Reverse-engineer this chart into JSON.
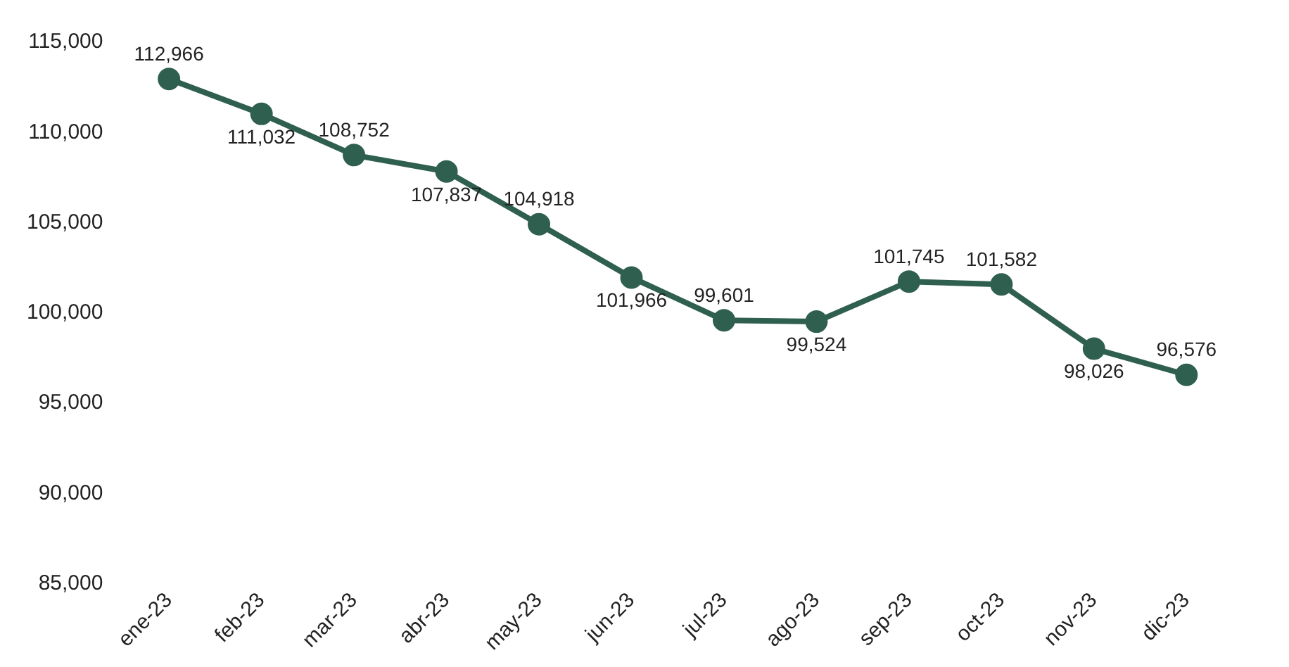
{
  "chart_data": {
    "type": "line",
    "categories": [
      "ene-23",
      "feb-23",
      "mar-23",
      "abr-23",
      "may-23",
      "jun-23",
      "jul-23",
      "ago-23",
      "sep-23",
      "oct-23",
      "nov-23",
      "dic-23"
    ],
    "series": [
      {
        "color": "#2f5f4f",
        "values": [
          112966,
          111032,
          108752,
          107837,
          104918,
          101966,
          99601,
          99524,
          101745,
          101582,
          98026,
          96576
        ],
        "value_labels": [
          "112,966",
          "111,032",
          "108,752",
          "107,837",
          "104,918",
          "101,966",
          "99,601",
          "99,524",
          "101,745",
          "101,582",
          "98,026",
          "96,576"
        ]
      }
    ],
    "ylim": [
      85000,
      115000
    ],
    "yticks": [
      {
        "value": 85000,
        "label": "85,000"
      },
      {
        "value": 90000,
        "label": "90,000"
      },
      {
        "value": 95000,
        "label": "95,000"
      },
      {
        "value": 100000,
        "label": "100,000"
      },
      {
        "value": 105000,
        "label": "105,000"
      },
      {
        "value": 110000,
        "label": "110,000"
      },
      {
        "value": 115000,
        "label": "115,000"
      }
    ],
    "grid": false,
    "legend": false,
    "marker": "circle",
    "line_style": "solid"
  }
}
